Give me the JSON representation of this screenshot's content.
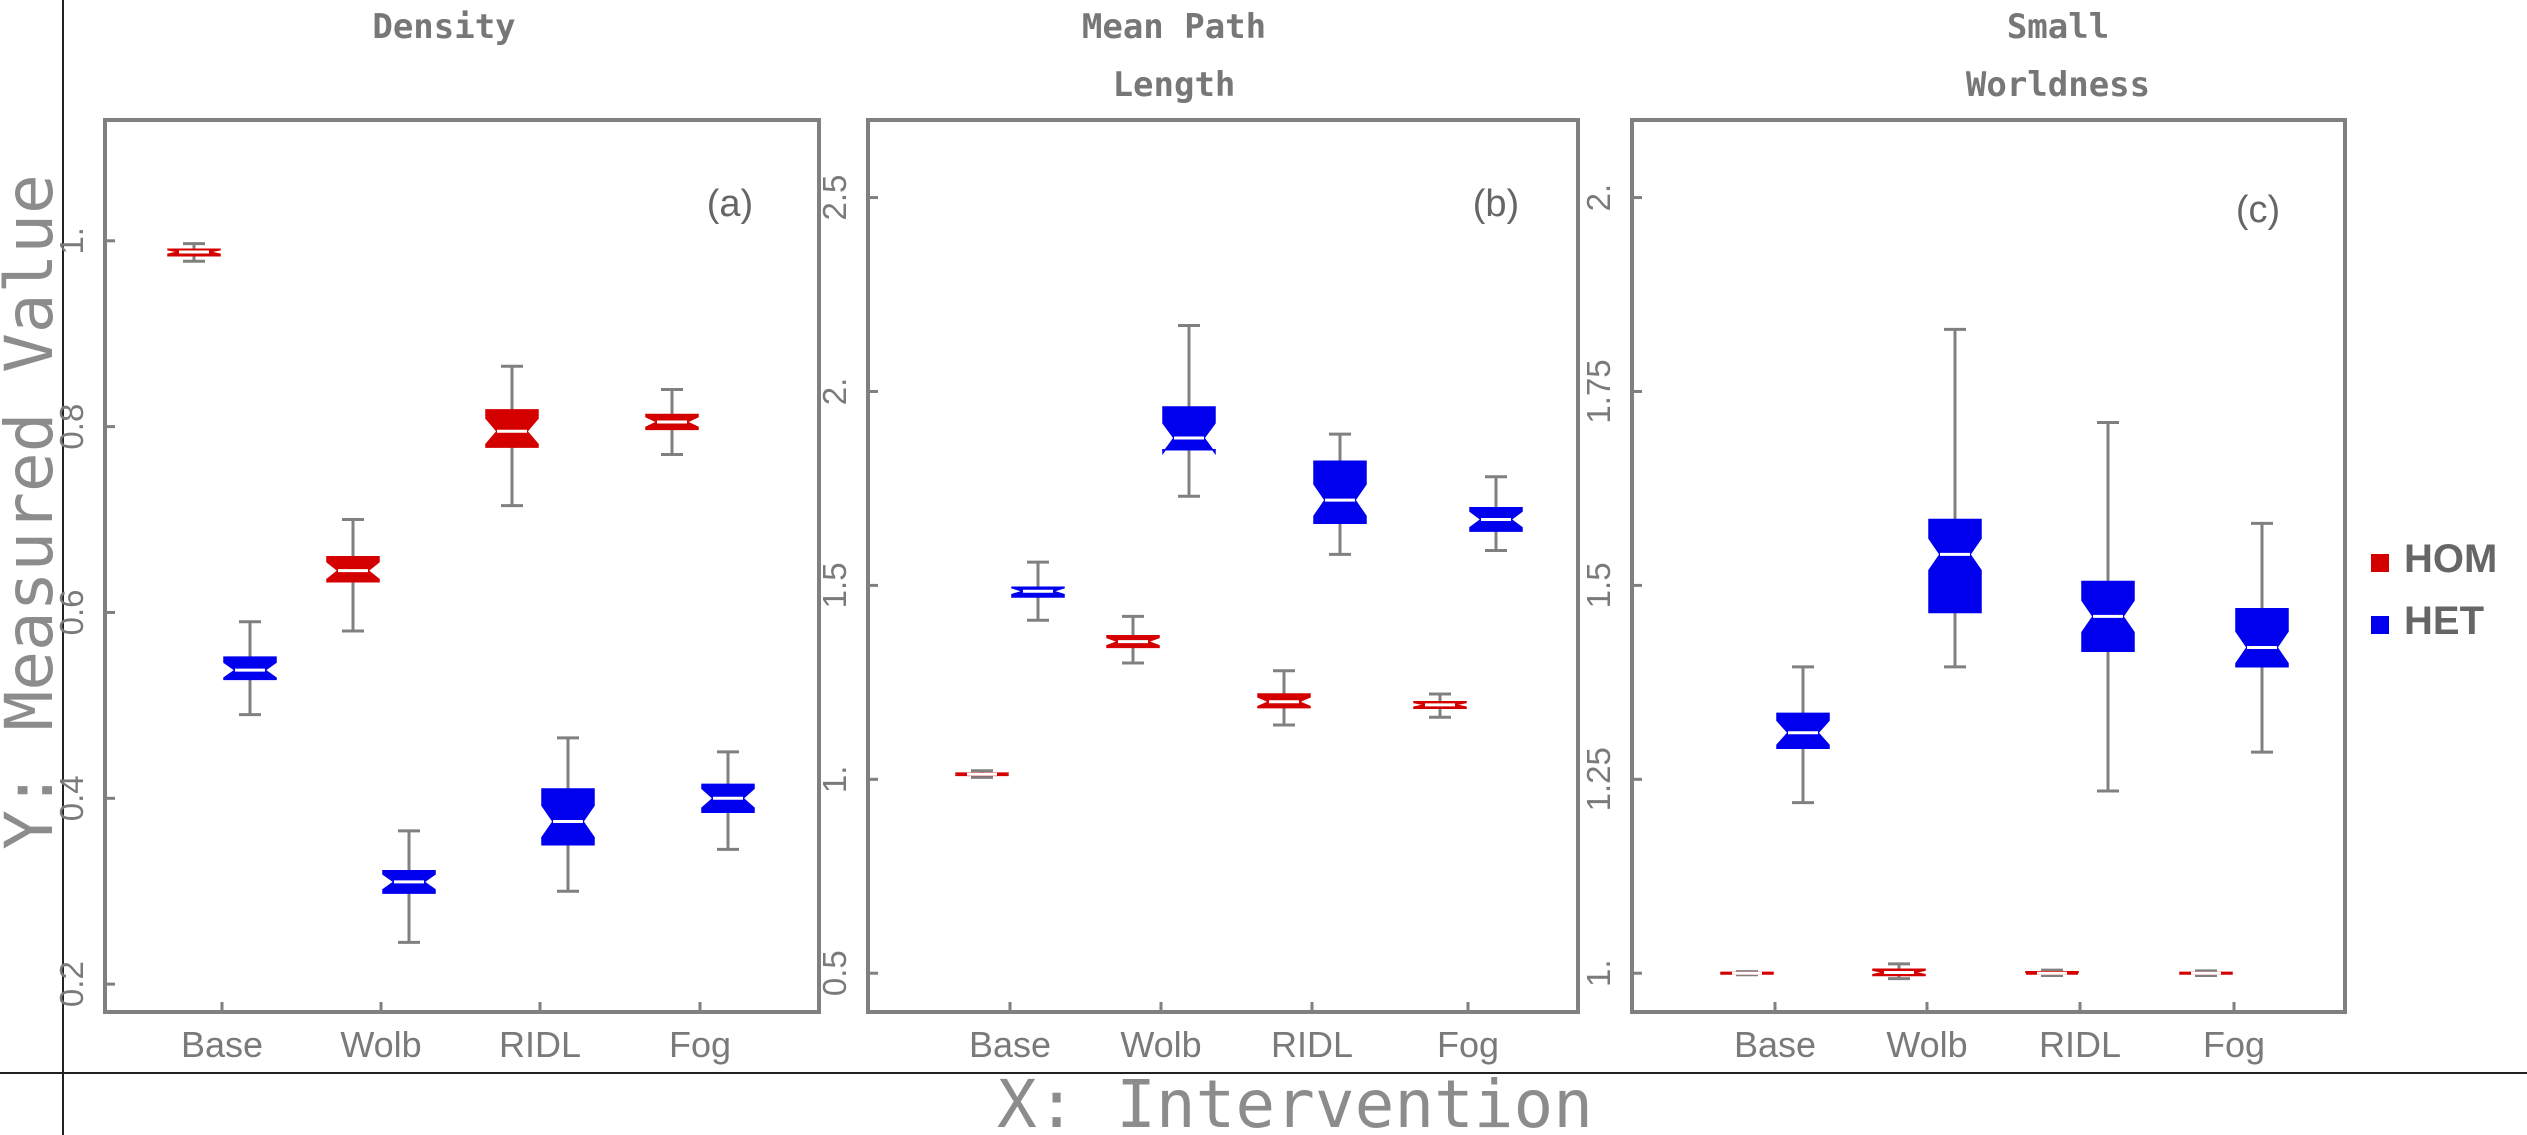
{
  "figure": {
    "ylabel": "Y: Measured Value",
    "xlabel": "X: Intervention"
  },
  "legend": {
    "placement": "right",
    "items": [
      {
        "label": "HOM",
        "color": "#d40000"
      },
      {
        "label": "HET",
        "color": "#0000ee"
      }
    ]
  },
  "chart_data": [
    {
      "type": "boxplot",
      "title_lines": [
        "Density"
      ],
      "panel_label": "(a)",
      "categories": [
        "Base",
        "Wolb",
        "RIDL",
        "Fog"
      ],
      "ylim": [
        0.17,
        1.13
      ],
      "yticks": [
        0.2,
        0.4,
        0.6,
        0.8,
        1.0
      ],
      "ytick_labels": [
        "0.2",
        "0.4",
        "0.6",
        "0.8",
        "1."
      ],
      "series": [
        {
          "name": "HOM",
          "color": "#d40000",
          "offset": -1,
          "boxes": [
            {
              "min": 0.978,
              "q1": 0.984,
              "median": 0.988,
              "q3": 0.991,
              "max": 0.997
            },
            {
              "min": 0.58,
              "q1": 0.633,
              "median": 0.645,
              "q3": 0.66,
              "max": 0.7
            },
            {
              "min": 0.715,
              "q1": 0.778,
              "median": 0.795,
              "q3": 0.818,
              "max": 0.865
            },
            {
              "min": 0.77,
              "q1": 0.797,
              "median": 0.805,
              "q3": 0.813,
              "max": 0.84
            }
          ]
        },
        {
          "name": "HET",
          "color": "#0000ee",
          "offset": 1,
          "boxes": [
            {
              "min": 0.49,
              "q1": 0.528,
              "median": 0.538,
              "q3": 0.552,
              "max": 0.59
            },
            {
              "min": 0.245,
              "q1": 0.298,
              "median": 0.31,
              "q3": 0.322,
              "max": 0.365
            },
            {
              "min": 0.3,
              "q1": 0.35,
              "median": 0.375,
              "q3": 0.41,
              "max": 0.465
            },
            {
              "min": 0.345,
              "q1": 0.385,
              "median": 0.4,
              "q3": 0.415,
              "max": 0.45
            }
          ]
        }
      ]
    },
    {
      "type": "boxplot",
      "title_lines": [
        "Mean Path",
        "Length"
      ],
      "panel_label": "(b)",
      "categories": [
        "Base",
        "Wolb",
        "RIDL",
        "Fog"
      ],
      "ylim": [
        0.4,
        2.7
      ],
      "yticks": [
        0.5,
        1.0,
        1.5,
        2.0,
        2.5
      ],
      "ytick_labels": [
        "0.5",
        "1.",
        "1.5",
        "2.",
        "2.5"
      ],
      "series": [
        {
          "name": "HOM",
          "color": "#d40000",
          "offset": -1,
          "boxes": [
            {
              "min": 1.005,
              "q1": 1.01,
              "median": 1.013,
              "q3": 1.016,
              "max": 1.022
            },
            {
              "min": 1.3,
              "q1": 1.34,
              "median": 1.355,
              "q3": 1.37,
              "max": 1.42
            },
            {
              "min": 1.14,
              "q1": 1.185,
              "median": 1.2,
              "q3": 1.22,
              "max": 1.28
            },
            {
              "min": 1.16,
              "q1": 1.183,
              "median": 1.192,
              "q3": 1.2,
              "max": 1.22
            }
          ]
        },
        {
          "name": "HET",
          "color": "#0000ee",
          "offset": 1,
          "boxes": [
            {
              "min": 1.41,
              "q1": 1.47,
              "median": 1.485,
              "q3": 1.495,
              "max": 1.56
            },
            {
              "min": 1.73,
              "q1": 1.85,
              "median": 1.88,
              "q3": 1.96,
              "max": 2.17
            },
            {
              "min": 1.58,
              "q1": 1.66,
              "median": 1.72,
              "q3": 1.82,
              "max": 1.89
            },
            {
              "min": 1.59,
              "q1": 1.64,
              "median": 1.67,
              "q3": 1.7,
              "max": 1.78
            }
          ]
        }
      ]
    },
    {
      "type": "boxplot",
      "title_lines": [
        "Small",
        "Worldness"
      ],
      "panel_label": "(c)",
      "categories": [
        "Base",
        "Wolb",
        "RIDL",
        "Fog"
      ],
      "ylim": [
        0.95,
        2.1
      ],
      "yticks": [
        1.0,
        1.25,
        1.5,
        1.75,
        2.0
      ],
      "ytick_labels": [
        "1.",
        "1.25",
        "1.5",
        "1.75",
        "2."
      ],
      "series": [
        {
          "name": "HOM",
          "color": "#d40000",
          "offset": -1,
          "boxes": [
            {
              "min": 0.998,
              "q1": 0.999,
              "median": 1.0,
              "q3": 1.001,
              "max": 1.002
            },
            {
              "min": 0.993,
              "q1": 0.997,
              "median": 1.001,
              "q3": 1.005,
              "max": 1.012
            },
            {
              "min": 0.997,
              "q1": 0.999,
              "median": 1.0,
              "q3": 1.002,
              "max": 1.004
            },
            {
              "min": 0.997,
              "q1": 0.999,
              "median": 1.0,
              "q3": 1.001,
              "max": 1.003
            }
          ]
        },
        {
          "name": "HET",
          "color": "#0000ee",
          "offset": 1,
          "boxes": [
            {
              "min": 1.22,
              "q1": 1.29,
              "median": 1.31,
              "q3": 1.335,
              "max": 1.395
            },
            {
              "min": 1.395,
              "q1": 1.465,
              "median": 1.54,
              "q3": 1.585,
              "max": 1.83
            },
            {
              "min": 1.235,
              "q1": 1.415,
              "median": 1.46,
              "q3": 1.505,
              "max": 1.71
            },
            {
              "min": 1.285,
              "q1": 1.395,
              "median": 1.42,
              "q3": 1.47,
              "max": 1.58
            }
          ]
        }
      ]
    }
  ]
}
